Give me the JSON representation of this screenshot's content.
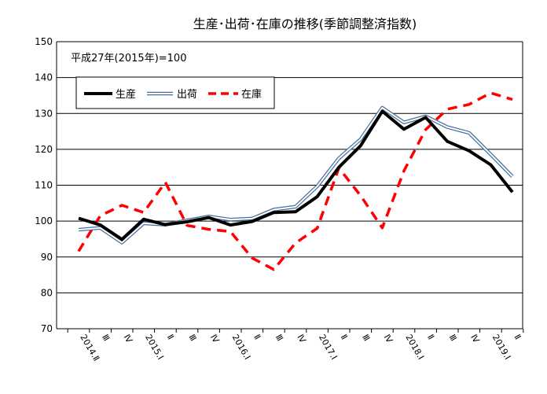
{
  "chart_data": {
    "type": "line",
    "title": "生産･出荷･在庫の推移(季節調整済指数)",
    "subtitle": "平成27年(2015年)=100",
    "categories": [
      "2014.Ⅱ",
      "Ⅲ",
      "Ⅳ",
      "2015.Ⅰ",
      "Ⅱ",
      "Ⅲ",
      "Ⅳ",
      "2016.Ⅰ",
      "Ⅱ",
      "Ⅲ",
      "Ⅳ",
      "2017.Ⅰ",
      "Ⅱ",
      "Ⅲ",
      "Ⅳ",
      "2018.Ⅰ",
      "Ⅱ",
      "Ⅲ",
      "Ⅳ",
      "2019.Ⅰ",
      "Ⅱ"
    ],
    "series": [
      {
        "name": "生産",
        "color": "#000000",
        "style": "solid-thick",
        "values": [
          100.8,
          98.9,
          94.9,
          100.5,
          99.0,
          99.8,
          101.0,
          98.9,
          99.9,
          102.4,
          102.6,
          106.8,
          115.0,
          121.0,
          130.6,
          125.6,
          128.9,
          122.2,
          119.6,
          115.7,
          108.1
        ]
      },
      {
        "name": "出荷",
        "color": "#4a6f9c",
        "style": "double",
        "values": [
          97.6,
          98.1,
          94.0,
          99.4,
          99.0,
          100.2,
          101.3,
          100.4,
          100.7,
          103.2,
          104.0,
          109.7,
          117.5,
          122.8,
          131.6,
          127.5,
          129.2,
          126.2,
          124.6,
          118.6,
          112.4
        ]
      },
      {
        "name": "在庫",
        "color": "#ff0000",
        "style": "dashed",
        "values": [
          91.6,
          101.5,
          104.4,
          102.4,
          110.8,
          98.8,
          97.7,
          97.1,
          89.7,
          86.5,
          93.9,
          98.0,
          114.8,
          107.1,
          98.1,
          114.0,
          125.5,
          131.2,
          132.5,
          135.7,
          133.9
        ]
      }
    ],
    "ylim": [
      70,
      150
    ],
    "yticks": [
      "70",
      "80",
      "90",
      "100",
      "110",
      "120",
      "130",
      "140",
      "150"
    ],
    "grid": true,
    "legend_position": "top-left"
  }
}
